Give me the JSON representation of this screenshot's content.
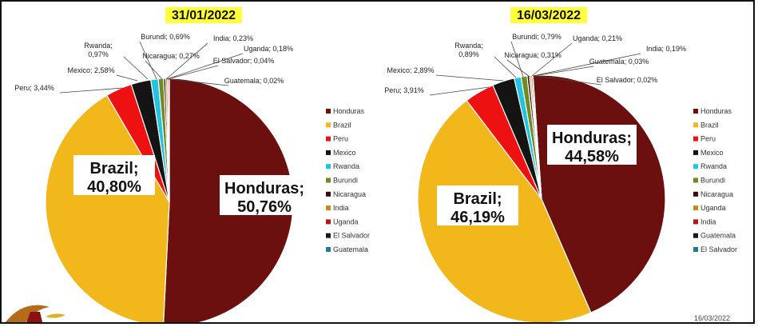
{
  "footer_date": "16/03/2022",
  "chart_data": [
    {
      "type": "pie",
      "title": "31/01/2022",
      "slices": [
        {
          "name": "Honduras",
          "value": 50.76,
          "label": "Honduras; 50,76%",
          "color": "#6b0f0f"
        },
        {
          "name": "Brazil",
          "value": 40.8,
          "label": "Brazil; 40,80%",
          "color": "#f2b71a"
        },
        {
          "name": "Peru",
          "value": 3.44,
          "label": "Peru; 3,44%",
          "color": "#ee1111"
        },
        {
          "name": "Mexico",
          "value": 2.58,
          "label": "Mexico; 2,58%",
          "color": "#141414"
        },
        {
          "name": "Rwanda",
          "value": 0.97,
          "label": "Rwanda; 0,97%",
          "color": "#22c3e0"
        },
        {
          "name": "Burundi",
          "value": 0.69,
          "label": "Burundi; 0,69%",
          "color": "#6f8a1f"
        },
        {
          "name": "Nicaragua",
          "value": 0.27,
          "label": "Nicaragua; 0,27%",
          "color": "#3a0c0c"
        },
        {
          "name": "India",
          "value": 0.23,
          "label": "India; 0,23%",
          "color": "#c58a14"
        },
        {
          "name": "Uganda",
          "value": 0.18,
          "label": "Uganda; 0,18%",
          "color": "#b01818"
        },
        {
          "name": "El Salvador",
          "value": 0.04,
          "label": "El Salvador; 0,04%",
          "color": "#1a1a1a"
        },
        {
          "name": "Guatemala",
          "value": 0.02,
          "label": "Guatemala; 0,02%",
          "color": "#1f7a99"
        }
      ],
      "legend": [
        "Honduras",
        "Brazil",
        "Peru",
        "Mexico",
        "Rwanda",
        "Burundi",
        "Nicaragua",
        "India",
        "Uganda",
        "El Salvador",
        "Guatemala"
      ],
      "legend_position": "right"
    },
    {
      "type": "pie",
      "title": "16/03/2022",
      "slices": [
        {
          "name": "Honduras",
          "value": 44.58,
          "label": "Honduras; 44,58%",
          "color": "#6b0f0f"
        },
        {
          "name": "Brazil",
          "value": 46.19,
          "label": "Brazil; 46,19%",
          "color": "#f2b71a"
        },
        {
          "name": "Peru",
          "value": 3.91,
          "label": "Peru; 3,91%",
          "color": "#ee1111"
        },
        {
          "name": "Mexico",
          "value": 2.89,
          "label": "Mexico; 2,89%",
          "color": "#141414"
        },
        {
          "name": "Rwanda",
          "value": 0.89,
          "label": "Rwanda; 0,89%",
          "color": "#22c3e0"
        },
        {
          "name": "Burundi",
          "value": 0.79,
          "label": "Burundi; 0,79%",
          "color": "#6f8a1f"
        },
        {
          "name": "Nicaragua",
          "value": 0.31,
          "label": "Nicaragua; 0,31%",
          "color": "#3a0c0c"
        },
        {
          "name": "Uganda",
          "value": 0.21,
          "label": "Uganda; 0,21%",
          "color": "#c58a14"
        },
        {
          "name": "India",
          "value": 0.19,
          "label": "India; 0,19%",
          "color": "#b01818"
        },
        {
          "name": "Guatemala",
          "value": 0.03,
          "label": "Guatemala; 0,03%",
          "color": "#1a1a1a"
        },
        {
          "name": "El Salvador",
          "value": 0.02,
          "label": "El Salvador; 0,02%",
          "color": "#1f7a99"
        }
      ],
      "legend": [
        "Honduras",
        "Brazil",
        "Peru",
        "Mexico",
        "Rwanda",
        "Burundi",
        "Nicaragua",
        "Uganda",
        "India",
        "Guatemala",
        "El Salvador"
      ],
      "legend_position": "right"
    }
  ]
}
